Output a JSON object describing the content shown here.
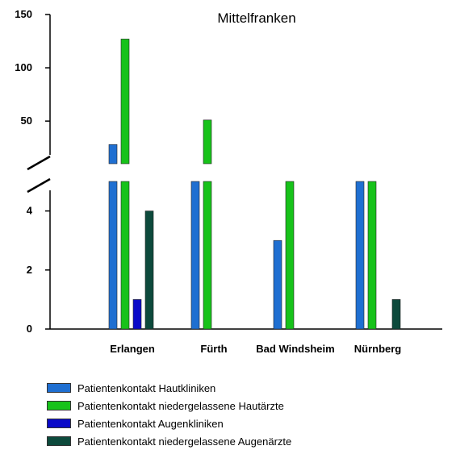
{
  "chart_data": {
    "type": "bar",
    "title": "Mittelfranken",
    "xlabel": "",
    "ylabel": "",
    "categories": [
      "Erlangen",
      "Fürth",
      "Bad Windsheim",
      "Nürnberg"
    ],
    "series": [
      {
        "name": "Patientenkontakt Hautkliniken",
        "color": "#1f6fd1",
        "values": [
          28,
          5,
          3,
          5
        ]
      },
      {
        "name": "Patientenkontakt niedergelassene Hautärzte",
        "color": "#17c21a",
        "values": [
          127,
          51,
          5,
          5
        ]
      },
      {
        "name": "Patientenkontakt Augenkliniken",
        "color": "#0a0ac8",
        "values": [
          1,
          0,
          0,
          0
        ]
      },
      {
        "name": "Patientenkontakt niedergelassene Augenärzte",
        "color": "#0d4a3c",
        "values": [
          4,
          0,
          0,
          1
        ]
      }
    ],
    "axis_break": {
      "lower_range": [
        0,
        5
      ],
      "upper_range": [
        10,
        150
      ]
    },
    "lower_ticks": [
      "0",
      "2",
      "4"
    ],
    "upper_ticks": [
      "50",
      "100",
      "150"
    ],
    "grid": false,
    "legend_position": "bottom"
  }
}
